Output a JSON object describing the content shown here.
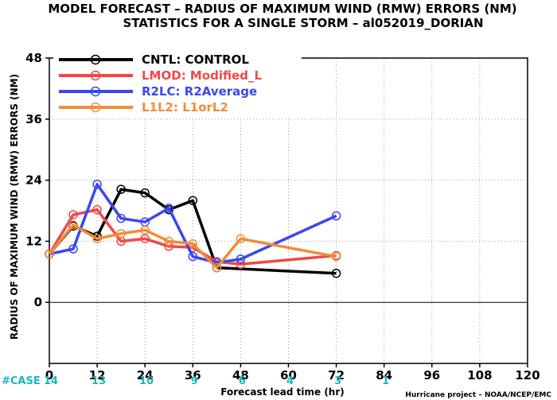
{
  "title_line1": "MODEL FORECAST – RADIUS OF MAXIMUM WIND (RMW) ERRORS (NM)",
  "title_line2": "STATISTICS FOR A SINGLE STORM – al052019_DORIAN",
  "case_label": "#CASE",
  "cases": [
    {
      "x": 0,
      "label": "14"
    },
    {
      "x": 12,
      "label": "13"
    },
    {
      "x": 24,
      "label": "10"
    },
    {
      "x": 36,
      "label": "9"
    },
    {
      "x": 48,
      "label": "6"
    },
    {
      "x": 60,
      "label": "4"
    },
    {
      "x": 72,
      "label": "3"
    },
    {
      "x": 84,
      "label": "1"
    }
  ],
  "credit": "Hurricane project – NOAA/NCEP/EMC",
  "chart_data": {
    "type": "line",
    "title": "MODEL FORECAST – RADIUS OF MAXIMUM WIND (RMW) ERRORS (NM)",
    "subtitle": "STATISTICS FOR A SINGLE STORM – al052019_DORIAN",
    "xlabel": "Forecast lead time (hr)",
    "ylabel": "RADIUS OF MAXIMUM WIND (RMW) ERRORS (NM)",
    "xlim": [
      0,
      120
    ],
    "ylim": [
      -12,
      48
    ],
    "xticks": [
      0,
      12,
      24,
      36,
      48,
      60,
      72,
      84,
      96,
      108,
      120
    ],
    "yticks": [
      0,
      12,
      24,
      36,
      48
    ],
    "grid": true,
    "legend_position": "top-left",
    "series": [
      {
        "name": "CNTL: CONTROL",
        "color": "#000000",
        "x": [
          0,
          6,
          12,
          18,
          24,
          30,
          36,
          42,
          72
        ],
        "y": [
          9.5,
          15,
          13,
          22.2,
          21.5,
          18.2,
          20,
          6.8,
          5.7
        ]
      },
      {
        "name": "LMOD: Modified_L",
        "color": "#f04848",
        "x": [
          0,
          6,
          12,
          18,
          24,
          30,
          36,
          42,
          48,
          72
        ],
        "y": [
          9.5,
          17.2,
          18.2,
          12,
          12.5,
          11,
          10.8,
          8,
          7.5,
          9.2
        ]
      },
      {
        "name": "R2LC: R2Average",
        "color": "#3848f0",
        "x": [
          0,
          6,
          12,
          18,
          24,
          30,
          36,
          42,
          48,
          72
        ],
        "y": [
          9.5,
          10.5,
          23.2,
          16.5,
          15.8,
          18.5,
          9,
          7.8,
          8.5,
          17
        ]
      },
      {
        "name": "L1L2: L1orL2",
        "color": "#f08c38",
        "x": [
          0,
          6,
          12,
          18,
          24,
          30,
          36,
          42,
          48,
          72
        ],
        "y": [
          9.5,
          15.2,
          12.5,
          13.5,
          14.2,
          12,
          11.5,
          6.8,
          12.5,
          9
        ]
      }
    ]
  }
}
